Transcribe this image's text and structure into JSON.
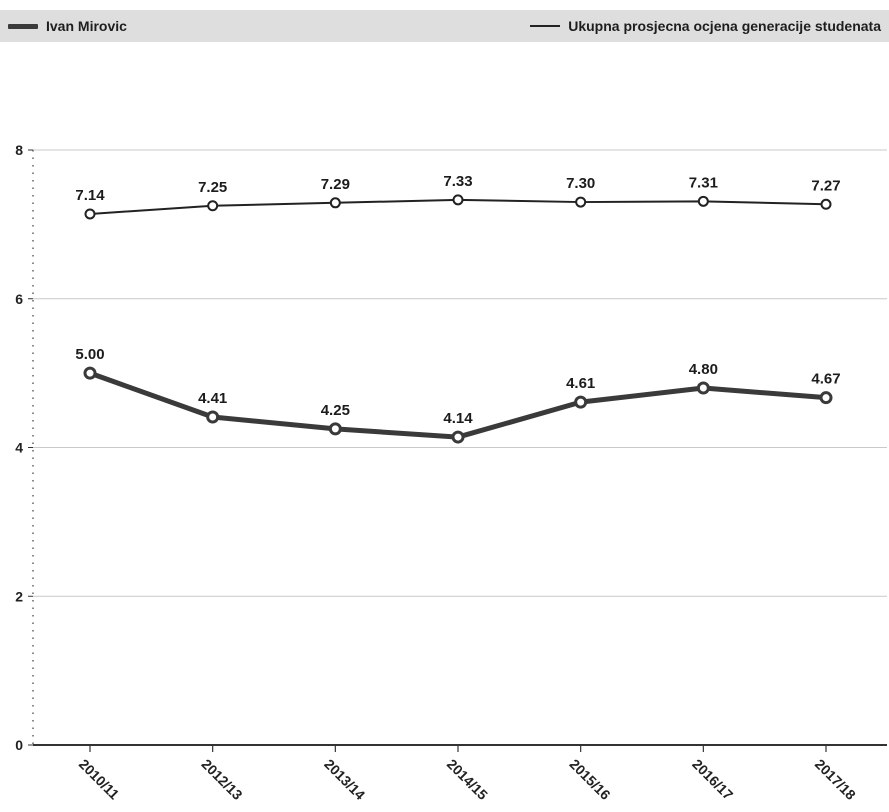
{
  "chart_data": {
    "type": "line",
    "categories": [
      "2010/11",
      "2012/13",
      "2013/14",
      "2014/15",
      "2015/16",
      "2016/17",
      "2017/18"
    ],
    "series": [
      {
        "name": "Ivan Mirovic",
        "values": [
          5.0,
          4.41,
          4.25,
          4.14,
          4.61,
          4.8,
          4.67
        ],
        "labels": [
          "5.00",
          "4.41",
          "4.25",
          "4.14",
          "4.61",
          "4.80",
          "4.67"
        ],
        "color": "#3a3a3a"
      },
      {
        "name": "Ukupna prosjecna ocjena generacije studenata",
        "values": [
          7.14,
          7.25,
          7.29,
          7.33,
          7.3,
          7.31,
          7.27
        ],
        "labels": [
          "7.14",
          "7.25",
          "7.29",
          "7.33",
          "7.30",
          "7.31",
          "7.27"
        ],
        "color": "#222222"
      }
    ],
    "ylim": [
      0,
      8
    ],
    "yticks": [
      "0",
      "2",
      "4",
      "6",
      "8"
    ],
    "grid": true,
    "legend_position": "top"
  }
}
